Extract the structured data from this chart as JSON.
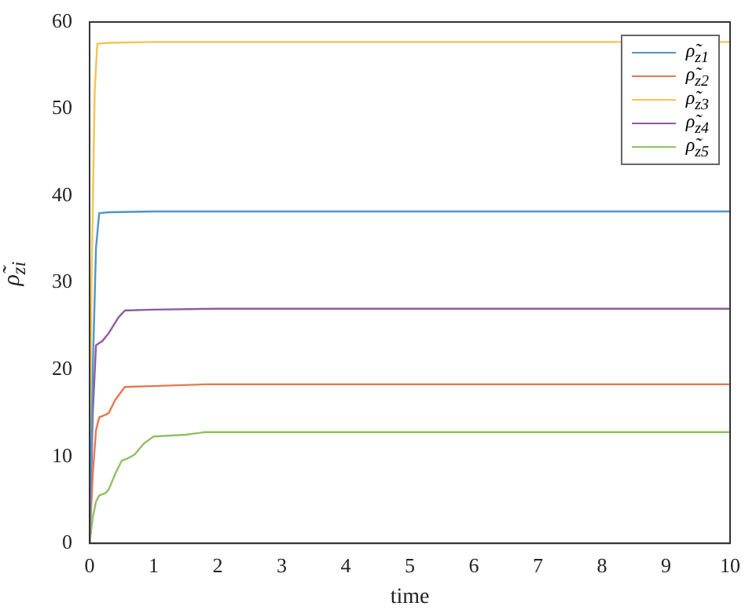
{
  "chart_data": {
    "type": "line",
    "xlabel": "time",
    "ylabel": "ρ̃$_{zi}$",
    "xlim": [
      0,
      10
    ],
    "ylim": [
      0,
      60
    ],
    "xticks": [
      0,
      1,
      2,
      3,
      4,
      5,
      6,
      7,
      8,
      9,
      10
    ],
    "yticks": [
      0,
      10,
      20,
      30,
      40,
      50,
      60
    ],
    "grid": false,
    "legend": "top right",
    "marker": "none",
    "line_style": "solid",
    "series": [
      {
        "name": "ρ̃$_{z1}$",
        "color": "#4f95cc",
        "x": [
          0,
          0.05,
          0.1,
          0.15,
          0.3,
          1,
          2,
          5,
          10
        ],
        "values": [
          0,
          20,
          34,
          38,
          38.1,
          38.2,
          38.2,
          38.2,
          38.2
        ]
      },
      {
        "name": "ρ̃$_{z2}$",
        "color": "#e8764e",
        "x": [
          0,
          0.05,
          0.1,
          0.15,
          0.25,
          0.3,
          0.4,
          0.55,
          1,
          1.8,
          5,
          10
        ],
        "values": [
          0,
          8,
          13,
          14.5,
          14.8,
          15,
          16.5,
          18,
          18.1,
          18.3,
          18.3,
          18.3
        ]
      },
      {
        "name": "ρ̃$_{z3}$",
        "color": "#f2c550",
        "x": [
          0,
          0.03,
          0.08,
          0.12,
          0.3,
          1,
          5,
          10
        ],
        "values": [
          0,
          30,
          52,
          57.5,
          57.6,
          57.7,
          57.7,
          57.7
        ]
      },
      {
        "name": "ρ̃$_{z4}$",
        "color": "#8d5aa2",
        "x": [
          0,
          0.05,
          0.1,
          0.2,
          0.3,
          0.45,
          0.55,
          1,
          2,
          5,
          10
        ],
        "values": [
          0,
          15,
          22.8,
          23.3,
          24.2,
          26,
          26.8,
          26.9,
          27,
          27,
          27
        ]
      },
      {
        "name": "ρ̃$_{z5}$",
        "color": "#8fc163",
        "x": [
          0,
          0.05,
          0.1,
          0.15,
          0.25,
          0.3,
          0.4,
          0.5,
          0.6,
          0.7,
          0.85,
          1,
          1.5,
          1.8,
          5,
          10
        ],
        "values": [
          0,
          3,
          4.8,
          5.5,
          5.8,
          6.2,
          8,
          9.5,
          9.8,
          10.2,
          11.5,
          12.3,
          12.5,
          12.8,
          12.8,
          12.8
        ]
      }
    ]
  }
}
